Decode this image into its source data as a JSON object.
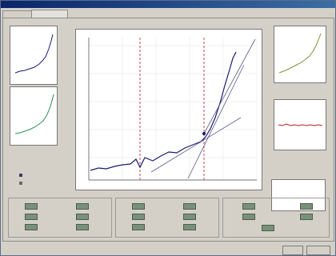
{
  "window": {
    "title": ""
  },
  "tabs": [
    {
      "label": ""
    },
    {
      "label": ""
    }
  ],
  "plots": {
    "top_left": {
      "title": "",
      "xlabel": ""
    },
    "bottom_left": {
      "title": "",
      "xlabel": ""
    },
    "main": {
      "title": "",
      "xlabel": ""
    },
    "top_right": {
      "title": "",
      "xlabel": ""
    },
    "mid_right": {
      "title": ""
    }
  },
  "legend": [
    {
      "label": ""
    },
    {
      "label": ""
    }
  ],
  "messages": {
    "line1": "",
    "line2": ""
  },
  "groups": {
    "g1": {
      "title": ""
    },
    "g2": {
      "title": ""
    },
    "g3": {
      "title": ""
    }
  },
  "fields": {
    "g1": [
      {
        "label": "",
        "value": "",
        "unit": ""
      },
      {
        "label": "",
        "value": "",
        "unit": ""
      },
      {
        "label": "",
        "value": "",
        "unit": ""
      },
      {
        "label": "",
        "value": "",
        "unit": ""
      },
      {
        "label": "",
        "value": "",
        "unit": ""
      },
      {
        "label": "",
        "value": "",
        "unit": ""
      }
    ],
    "g2": [
      {
        "label": "",
        "value": "",
        "unit": ""
      },
      {
        "label": "",
        "value": "",
        "unit": ""
      },
      {
        "label": "",
        "value": "",
        "unit": ""
      },
      {
        "label": "",
        "value": "",
        "unit": ""
      },
      {
        "label": "",
        "value": "",
        "unit": ""
      },
      {
        "label": "",
        "value": "",
        "unit": ""
      }
    ],
    "g3": [
      {
        "label": "",
        "value": "",
        "unit": ""
      },
      {
        "label": "",
        "value": "",
        "unit": ""
      },
      {
        "label": "",
        "value": "",
        "unit": ""
      },
      {
        "label": "",
        "value": "",
        "unit": ""
      },
      {
        "label": "",
        "value": "",
        "unit": ""
      }
    ]
  },
  "buttons": {
    "ok": "",
    "cancel": ""
  },
  "colors": {
    "title_bar": "#0a246a",
    "field_bg": "#78927a",
    "field_text": "#f1f1d0",
    "curve_blue": "#1a1a6e",
    "curve_green": "#2e8b57",
    "curve_olive": "#8b8b3a",
    "curve_red": "#b22222",
    "message_text": "#a00000"
  }
}
